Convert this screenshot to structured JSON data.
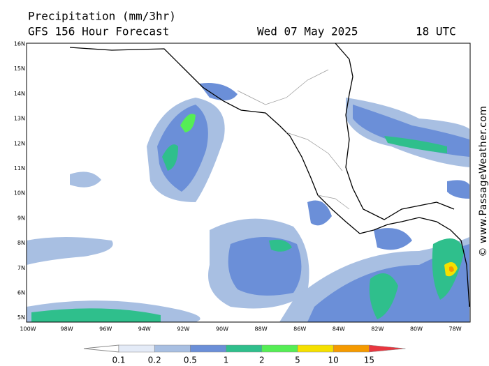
{
  "header": {
    "title": "Precipitation (mm/3hr)",
    "subtitle": "GFS 156 Hour Forecast",
    "date": "Wed 07 May 2025",
    "time": "18 UTC"
  },
  "map": {
    "lat_labels": [
      "16N",
      "15N",
      "14N",
      "13N",
      "12N",
      "11N",
      "10N",
      "9N",
      "8N",
      "7N",
      "6N",
      "5N"
    ],
    "lon_labels": [
      "100W",
      "98W",
      "96W",
      "94W",
      "92W",
      "90W",
      "88W",
      "86W",
      "84W",
      "82W",
      "80W",
      "78W"
    ]
  },
  "legend": {
    "levels": [
      0.1,
      0.2,
      0.5,
      1,
      2,
      5,
      10,
      15
    ],
    "colors": [
      "#ffffff",
      "#e4ebf7",
      "#a8bfe2",
      "#6b8fd8",
      "#2fbf8c",
      "#55ee55",
      "#f5e000",
      "#f59a00",
      "#e8363f"
    ]
  },
  "watermark": "© www.PassageWeather.com"
}
